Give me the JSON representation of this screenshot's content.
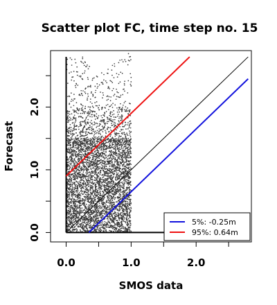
{
  "chart_data": {
    "type": "scatter",
    "title": "Scatter plot FC, time step no. 15",
    "xlabel": "SMOS data",
    "ylabel": "Forecast",
    "xlim": [
      -0.24,
      2.85
    ],
    "ylim": [
      -0.15,
      2.9
    ],
    "x_ticks": [
      0.0,
      0.5,
      1.0,
      1.5,
      2.0,
      2.5
    ],
    "x_tick_labels": [
      "0.0",
      "",
      "1.0",
      "",
      "2.0",
      ""
    ],
    "y_ticks": [
      0.0,
      0.5,
      1.0,
      1.5,
      2.0,
      2.5
    ],
    "y_tick_labels": [
      "0.0",
      "",
      "1.0",
      "",
      "2.0",
      ""
    ],
    "point_color": "#3a3a3a",
    "scatter_envelope": [
      {
        "x": 0.0,
        "y_min": 0.0,
        "y_max": 2.78
      },
      {
        "x": 0.25,
        "y_min": 0.0,
        "y_max": 2.8
      },
      {
        "x": 0.5,
        "y_min": 0.0,
        "y_max": 2.55
      },
      {
        "x": 0.75,
        "y_min": 0.0,
        "y_max": 2.7
      },
      {
        "x": 1.0,
        "y_min": 0.0,
        "y_max": 2.9
      }
    ],
    "reference_lines": [
      {
        "id": "identity",
        "x": [
          0.0,
          2.8
        ],
        "y": [
          0.0,
          2.8
        ],
        "color": "#000000"
      },
      {
        "id": "p95",
        "x": [
          0.0,
          1.9
        ],
        "y": [
          0.9,
          2.8
        ],
        "color": "#ee1111"
      },
      {
        "id": "p5",
        "x": [
          0.35,
          2.8
        ],
        "y": [
          0.0,
          2.45
        ],
        "color": "#1111dd"
      }
    ],
    "axis_lines": [
      {
        "x": [
          0.0,
          0.0
        ],
        "y": [
          0.0,
          2.8
        ]
      },
      {
        "x": [
          0.0,
          2.8
        ],
        "y": [
          0.0,
          0.0
        ]
      }
    ],
    "legend": {
      "position": "bottom-right",
      "entries": [
        {
          "label": "5%: -0.25m",
          "color": "#1111dd"
        },
        {
          "label": "95%:  0.64m",
          "color": "#ee1111"
        }
      ]
    }
  }
}
